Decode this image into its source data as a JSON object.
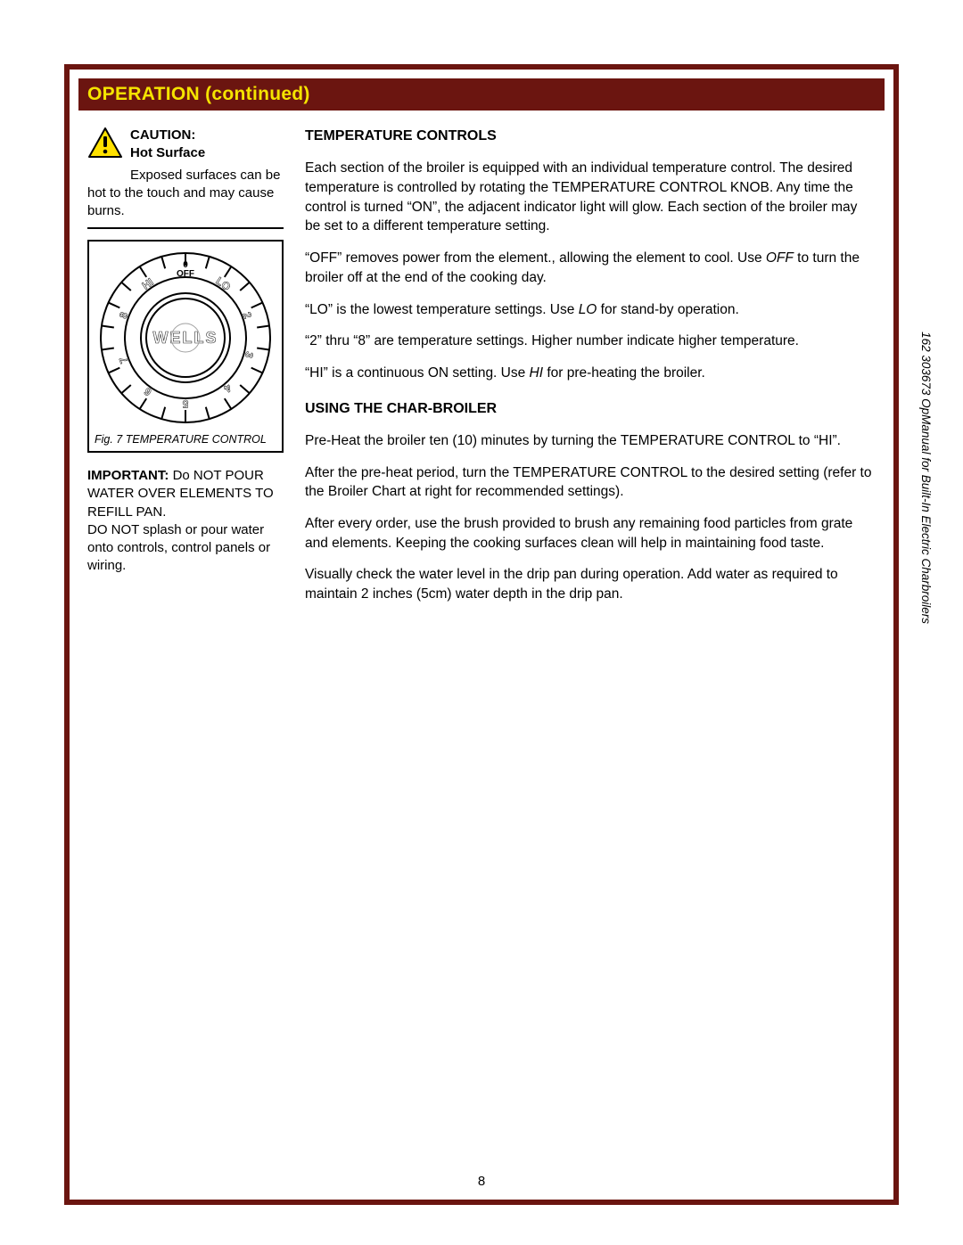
{
  "header": {
    "title": "OPERATION (continued)"
  },
  "colors": {
    "frame": "#6b1510",
    "header_bg": "#6b1510",
    "header_text": "#f5e400",
    "caution_fill": "#ffe100",
    "caution_border": "#000000",
    "divider": "#000000",
    "page_bg": "#ffffff"
  },
  "caution": {
    "head": "CAUTION:",
    "sub": "Hot Surface",
    "body_intro": "Exposed surfaces",
    "body_rest": "can be hot to the touch and may cause burns."
  },
  "dial": {
    "caption": "Fig. 7 TEMPERATURE CONTROL",
    "center_text": "WELLS",
    "zero": "0",
    "off": "OFF",
    "hi": "HI",
    "lo": "LO",
    "marks": [
      "2",
      "3",
      "4",
      "5",
      "6",
      "7",
      "8"
    ],
    "tick_count": 22,
    "outer_radius": 95,
    "ring_outer": 68,
    "ring_inner": 50,
    "hub_radius": 44,
    "knob_radius": 16,
    "tick_len": 14,
    "stroke_width": 2
  },
  "important": {
    "head": "IMPORTANT:",
    "line1": "Do NOT POUR WATER OVER ELEMENTS TO REFILL PAN.",
    "line2": "DO NOT splash or pour water onto controls, control panels or wiring."
  },
  "right": {
    "h1": "TEMPERATURE CONTROLS",
    "p1": "Each section of the broiler is equipped with an individual temperature control.  The desired temperature is controlled by rotating the TEMPERATURE CONTROL KNOB.  Any time the control is turned “ON”, the adjacent indicator light will glow.  Each section of the broiler may be set to a different temperature setting.",
    "p2a": "“OFF” removes power from the element., allowing the element to cool.  Use ",
    "p2b": "OFF",
    "p2c": " to turn the broiler off at the end of the cooking day.",
    "p3a": "“LO” is the lowest temperature settings.  Use ",
    "p3b": "LO",
    "p3c": " for stand-by operation.",
    "p4": "“2” thru “8” are temperature settings.  Higher number indicate higher temperature.",
    "p5a": "“HI” is a continuous ON setting.  Use ",
    "p5b": "HI",
    "p5c": " for pre-heating the broiler.",
    "h2": "USING THE CHAR-BROILER",
    "p6": "Pre-Heat the broiler ten (10) minutes by turning the TEMPERATURE CONTROL to “HI”.",
    "p7": "After the pre-heat period, turn the TEMPERATURE CONTROL to the desired setting (refer to the Broiler Chart at right for recommended settings).",
    "p8": "After every order, use the brush provided to brush any remaining food particles from grate and elements.  Keeping the cooking surfaces clean will help in maintaining food taste.",
    "p9": "Visually check the water level in the drip pan during operation.  Add water as required to maintain 2 inches (5cm) water depth in the drip pan."
  },
  "footer": {
    "page_number": "8"
  },
  "side": {
    "label": "162  303673  OpManual for Built-In Electric Charbroilers"
  }
}
